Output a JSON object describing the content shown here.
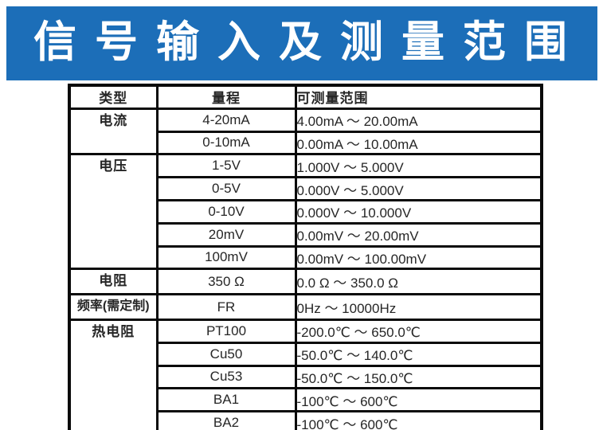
{
  "banner": {
    "title": "信 号 输 入 及 测 量 范 围",
    "bg_color": "#1c6eb8",
    "text_color": "#ffffff"
  },
  "table": {
    "headers": {
      "type": "类型",
      "range": "量程",
      "span": "可测量范围"
    },
    "groups": [
      {
        "type": "电流",
        "rows": [
          {
            "range": "4-20mA",
            "span": "4.00mA ～ 20.00mA"
          },
          {
            "range": "0-10mA",
            "span": "0.00mA ～ 10.00mA"
          }
        ]
      },
      {
        "type": "电压",
        "rows": [
          {
            "range": "1-5V",
            "span": "1.000V ～ 5.000V"
          },
          {
            "range": "0-5V",
            "span": "0.000V ～ 5.000V"
          },
          {
            "range": "0-10V",
            "span": "0.000V ～ 10.000V"
          },
          {
            "range": "20mV",
            "span": "0.00mV ～ 20.00mV"
          },
          {
            "range": "100mV",
            "span": "0.00mV ～ 100.00mV"
          }
        ]
      },
      {
        "type": "电阻",
        "rows": [
          {
            "range": "350 Ω",
            "span": "0.0 Ω ～ 350.0 Ω"
          }
        ]
      },
      {
        "type": "频率(需定制)",
        "rows": [
          {
            "range": "FR",
            "span": "0Hz ～ 10000Hz"
          }
        ]
      },
      {
        "type": "热电阻",
        "rows": [
          {
            "range": "PT100",
            "span": "-200.0℃ ～ 650.0℃"
          },
          {
            "range": "Cu50",
            "span": "-50.0℃ ～ 140.0℃"
          },
          {
            "range": "Cu53",
            "span": "-50.0℃ ～ 150.0℃"
          },
          {
            "range": "BA1",
            "span": "-100℃ ～ 600℃"
          },
          {
            "range": "BA2",
            "span": "-100℃ ～ 600℃"
          }
        ]
      }
    ]
  }
}
